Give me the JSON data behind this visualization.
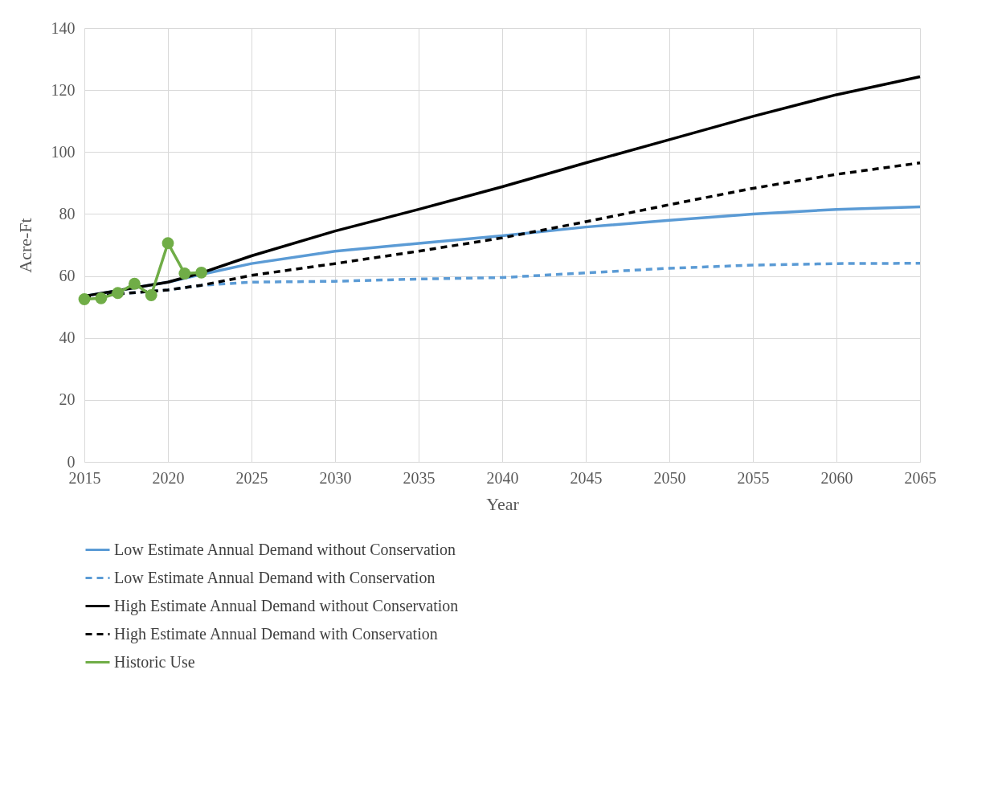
{
  "chart_data": {
    "type": "line",
    "xlabel": "Year",
    "ylabel": "Acre-Ft",
    "xlim": [
      2015,
      2065
    ],
    "xticks": [
      2015,
      2020,
      2025,
      2030,
      2035,
      2040,
      2045,
      2050,
      2055,
      2060,
      2065
    ],
    "ylim": [
      0,
      140
    ],
    "yticks": [
      0,
      20,
      40,
      60,
      80,
      100,
      120,
      140
    ],
    "grid": true,
    "legend": "bottom",
    "series": [
      {
        "name": "Low Estimate Annual Demand without Conservation",
        "color": "#5b9bd5",
        "line_style": "solid",
        "marker": "none",
        "x": [
          2015,
          2020,
          2022,
          2025,
          2030,
          2035,
          2040,
          2045,
          2050,
          2055,
          2060,
          2065
        ],
        "values": [
          53.5,
          58,
          60.5,
          64,
          68,
          70.5,
          73,
          75.8,
          78,
          80,
          81.5,
          82.3
        ]
      },
      {
        "name": "Low Estimate Annual Demand with Conservation",
        "color": "#5b9bd5",
        "line_style": "dashed",
        "marker": "none",
        "x": [
          2015,
          2020,
          2022,
          2025,
          2030,
          2035,
          2040,
          2045,
          2050,
          2055,
          2060,
          2065
        ],
        "values": [
          53.3,
          55.5,
          57,
          58,
          58.3,
          59,
          59.5,
          61,
          62.5,
          63.5,
          64,
          64.1
        ]
      },
      {
        "name": "High Estimate Annual Demand without Conservation",
        "color": "#000000",
        "line_style": "solid",
        "marker": "none",
        "x": [
          2015,
          2020,
          2022,
          2025,
          2030,
          2035,
          2040,
          2045,
          2050,
          2055,
          2060,
          2065
        ],
        "values": [
          53.5,
          58,
          61,
          66.5,
          74.5,
          81.5,
          88.8,
          96.5,
          104,
          111.5,
          118.5,
          124.3
        ]
      },
      {
        "name": "High Estimate Annual Demand with Conservation",
        "color": "#000000",
        "line_style": "dashed",
        "marker": "none",
        "x": [
          2015,
          2020,
          2022,
          2025,
          2030,
          2035,
          2040,
          2045,
          2050,
          2055,
          2060,
          2065
        ],
        "values": [
          53.3,
          55.5,
          57,
          60.2,
          64,
          68,
          72.3,
          77.5,
          83,
          88.3,
          92.8,
          96.5
        ]
      },
      {
        "name": "Historic Use",
        "color": "#70ad47",
        "line_style": "solid",
        "marker": "circle",
        "x": [
          2015,
          2016,
          2017,
          2018,
          2019,
          2020,
          2021,
          2022
        ],
        "values": [
          52.5,
          52.8,
          54.5,
          57.5,
          53.8,
          70.6,
          60.8,
          61.1
        ]
      }
    ]
  }
}
